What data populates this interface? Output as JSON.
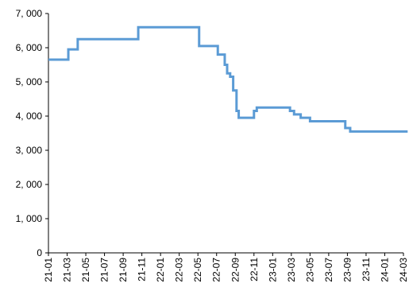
{
  "chart_data": {
    "type": "line",
    "title": "",
    "xlabel": "",
    "ylabel": "",
    "ylim": [
      0,
      7000
    ],
    "yticks": [
      0,
      1000,
      2000,
      3000,
      4000,
      5000,
      6000,
      7000
    ],
    "ytick_labels": [
      "0",
      "1, 000",
      "2, 000",
      "3, 000",
      "4, 000",
      "5, 000",
      "6, 000",
      "7, 000"
    ],
    "xlim": [
      "2021-01",
      "2024-03"
    ],
    "xtick_labels": [
      "21-01",
      "21-03",
      "21-05",
      "21-07",
      "21-09",
      "21-11",
      "22-01",
      "22-03",
      "22-05",
      "22-07",
      "22-09",
      "22-11",
      "23-01",
      "23-03",
      "23-05",
      "23-07",
      "23-09",
      "23-11",
      "24-01",
      "24-03"
    ],
    "grid": false,
    "legend": "none",
    "line_color": "#5B9BD5",
    "step": true,
    "series": [
      {
        "x": [
          "2021-01-01",
          "2021-03-05",
          "2021-04-05",
          "2021-10-20",
          "2022-05-05",
          "2022-07-05",
          "2022-07-28",
          "2022-08-05",
          "2022-08-15",
          "2022-08-25",
          "2022-09-05",
          "2022-09-12",
          "2022-11-01",
          "2022-11-10",
          "2023-02-25",
          "2023-03-10",
          "2023-04-01",
          "2023-05-01",
          "2023-08-25",
          "2023-09-10",
          "2024-03-15"
        ],
        "y": [
          5650,
          5950,
          6250,
          6600,
          6050,
          5800,
          5500,
          5250,
          5150,
          4750,
          4150,
          3950,
          4150,
          4250,
          4150,
          4050,
          3950,
          3850,
          3650,
          3550,
          3550
        ]
      }
    ]
  }
}
